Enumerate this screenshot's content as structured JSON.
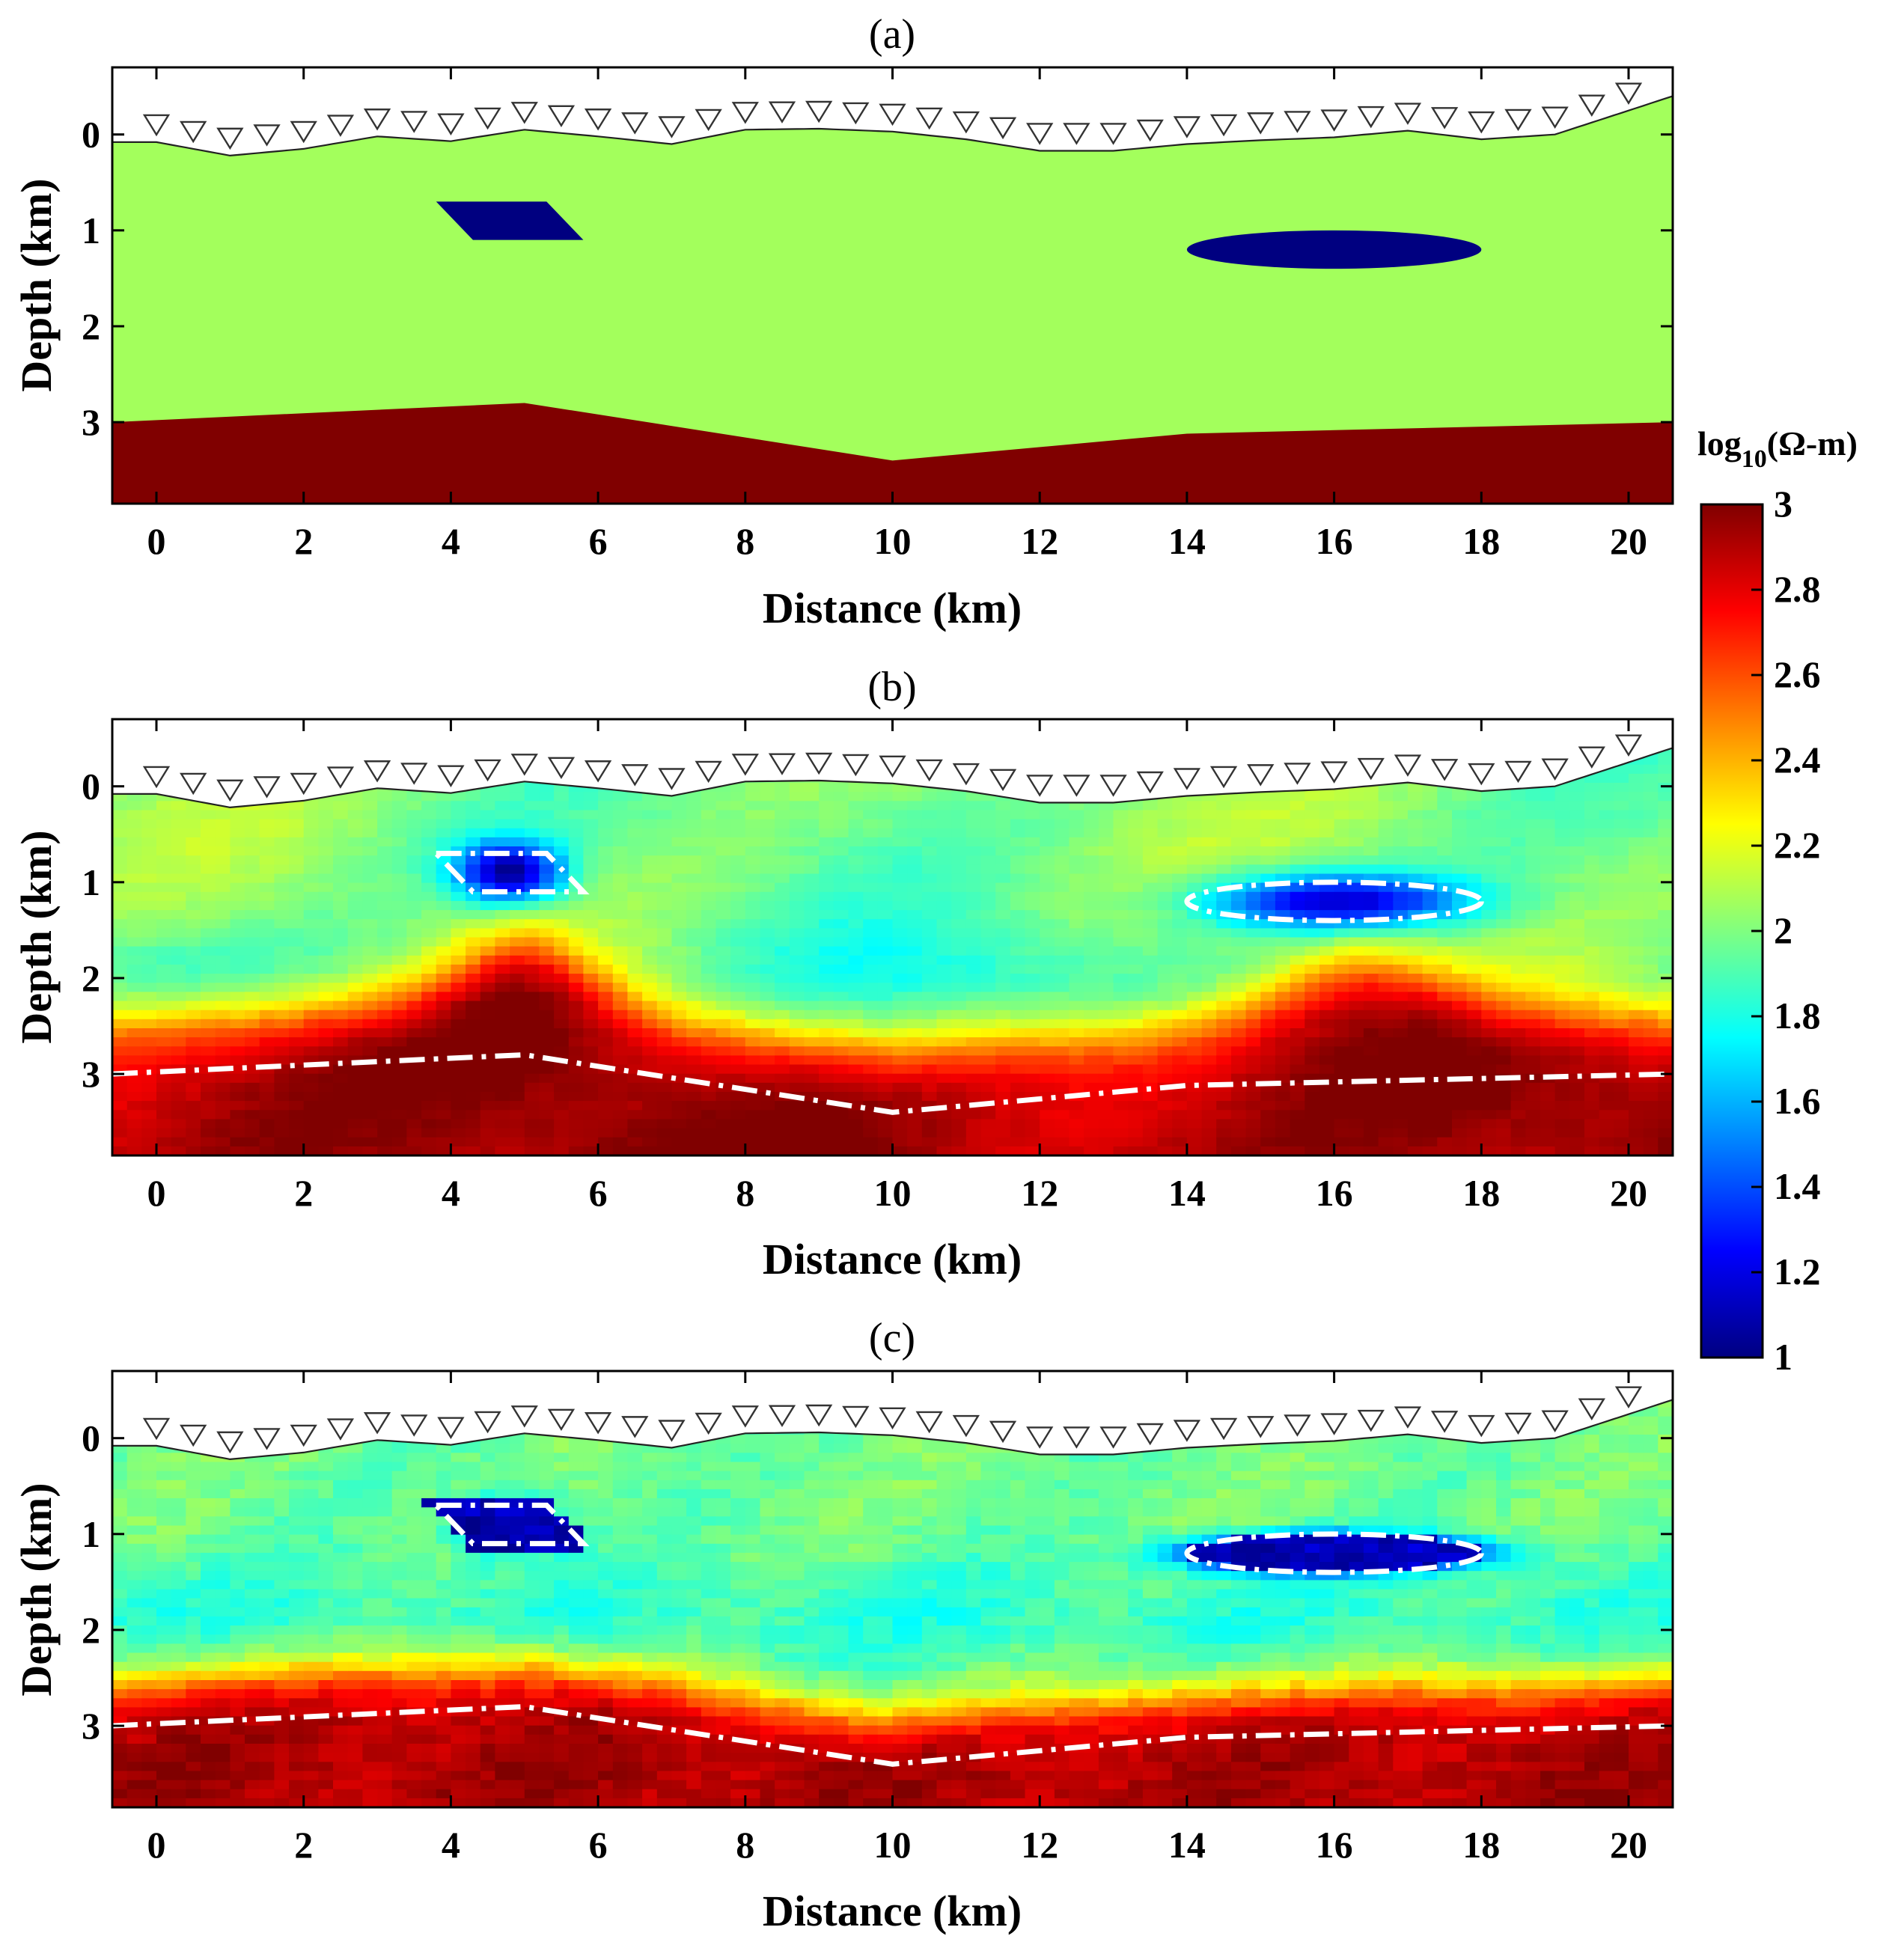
{
  "chart_data": {
    "type": "heatmap",
    "colorbar": {
      "label_main": "log",
      "label_sub": "10",
      "label_unit": "(Ω-m)",
      "min": 1,
      "max": 3,
      "ticks": [
        "3",
        "2.8",
        "2.6",
        "2.4",
        "2.2",
        "2",
        "1.8",
        "1.6",
        "1.4",
        "1.2",
        "1"
      ],
      "colormap": "jet"
    },
    "x_range": [
      -0.6,
      20.6
    ],
    "y_range": [
      3.85,
      -0.7
    ],
    "x_ticks": [
      "0",
      "2",
      "4",
      "6",
      "8",
      "10",
      "12",
      "14",
      "16",
      "18",
      "20"
    ],
    "y_ticks": [
      "0",
      "1",
      "2",
      "3"
    ],
    "topography": {
      "x": [
        -0.6,
        0,
        1,
        2,
        3,
        4,
        5,
        6,
        7,
        8,
        9,
        10,
        11,
        12,
        13,
        14,
        15,
        16,
        17,
        18,
        19,
        20,
        20.6
      ],
      "depth": [
        0.08,
        0.08,
        0.22,
        0.15,
        0.02,
        0.07,
        -0.05,
        0.02,
        0.1,
        -0.05,
        -0.06,
        -0.03,
        0.05,
        0.17,
        0.17,
        0.1,
        0.06,
        0.03,
        -0.04,
        0.05,
        0.0,
        -0.25,
        -0.4
      ]
    },
    "stations": {
      "x": [
        0,
        0.5,
        1,
        1.5,
        2,
        2.5,
        3,
        3.5,
        4,
        4.5,
        5,
        5.5,
        6,
        6.5,
        7,
        7.5,
        8,
        8.5,
        9,
        9.5,
        10,
        10.5,
        11,
        11.5,
        12,
        12.5,
        13,
        13.5,
        14,
        14.5,
        15,
        15.5,
        16,
        16.5,
        17,
        17.5,
        18,
        18.5,
        19,
        19.5,
        20
      ]
    },
    "basement_interface": {
      "x": [
        -0.6,
        5,
        10,
        14,
        20.6
      ],
      "depth": [
        3.0,
        2.8,
        3.4,
        3.12,
        3.0
      ]
    },
    "anomalies": {
      "parallelogram": {
        "top_depth": 0.7,
        "bottom_depth": 1.1,
        "top_x": [
          3.8,
          5.3
        ],
        "bottom_x": [
          4.3,
          5.8
        ]
      },
      "ellipse": {
        "center_x": 16,
        "center_depth": 1.2,
        "semi_x": 2,
        "semi_depth": 0.2
      }
    },
    "panels": [
      {
        "title": "(a)",
        "xlabel": "Distance (km)",
        "ylabel": "Depth (km)",
        "kind": "true-model",
        "values": {
          "background": 2.07,
          "anomaly": 1.0,
          "basement": 3.0
        }
      },
      {
        "title": "(b)",
        "xlabel": "Distance (km)",
        "ylabel": "Depth (km)",
        "kind": "inversion-smooth",
        "values": {
          "background": 2.0,
          "anomaly_core": 1.15,
          "basement_deep": 2.95
        }
      },
      {
        "title": "(c)",
        "xlabel": "Distance (km)",
        "ylabel": "Depth (km)",
        "kind": "inversion-sharp",
        "values": {
          "background": 1.97,
          "anomaly_core": 1.05,
          "basement_deep": 2.95
        }
      }
    ]
  }
}
